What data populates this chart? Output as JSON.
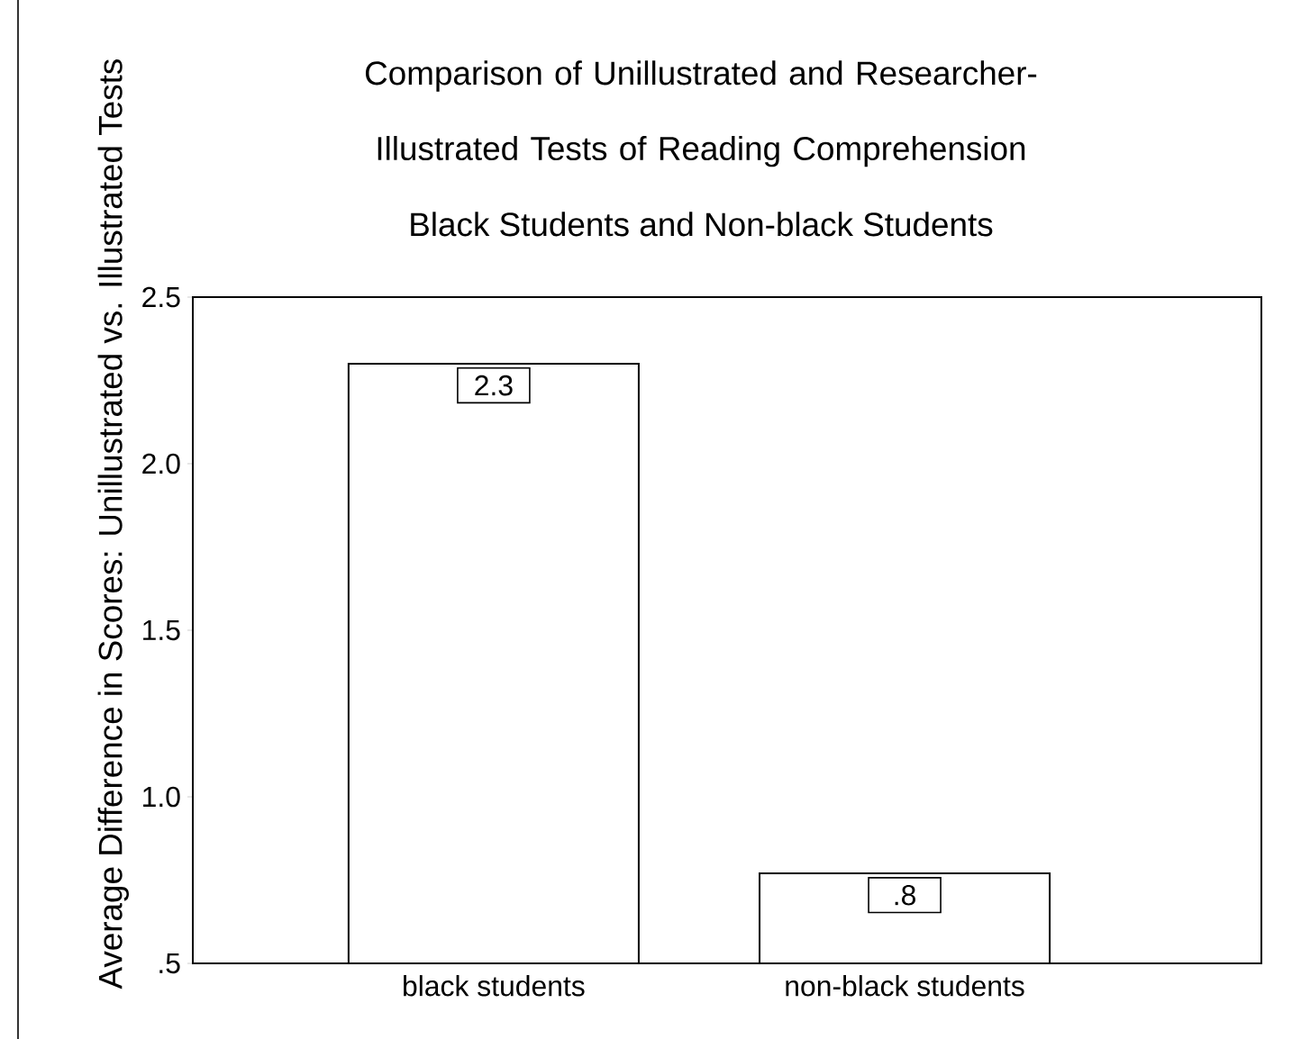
{
  "chart_data": {
    "type": "bar",
    "title": "Comparison of Unillustrated and Researcher-Illustrated Tests of Reading Comprehension",
    "subtitle": "Black Students and Non-black Students",
    "ylabel": "Average Difference in Scores: Unillustrated vs. Illustrated Tests",
    "categories": [
      "black students",
      "non-black students"
    ],
    "values": [
      2.3,
      0.77
    ],
    "value_labels": [
      "2.3",
      ".8"
    ],
    "color": "#ffffff",
    "ylim": [
      0.5,
      2.5
    ],
    "yticks": [
      {
        "value": 0.5,
        "label": ".5"
      },
      {
        "value": 1.0,
        "label": "1.0"
      },
      {
        "value": 1.5,
        "label": "1.5"
      },
      {
        "value": 2.0,
        "label": "2.0"
      },
      {
        "value": 2.5,
        "label": "2.5"
      }
    ],
    "grid": false
  }
}
